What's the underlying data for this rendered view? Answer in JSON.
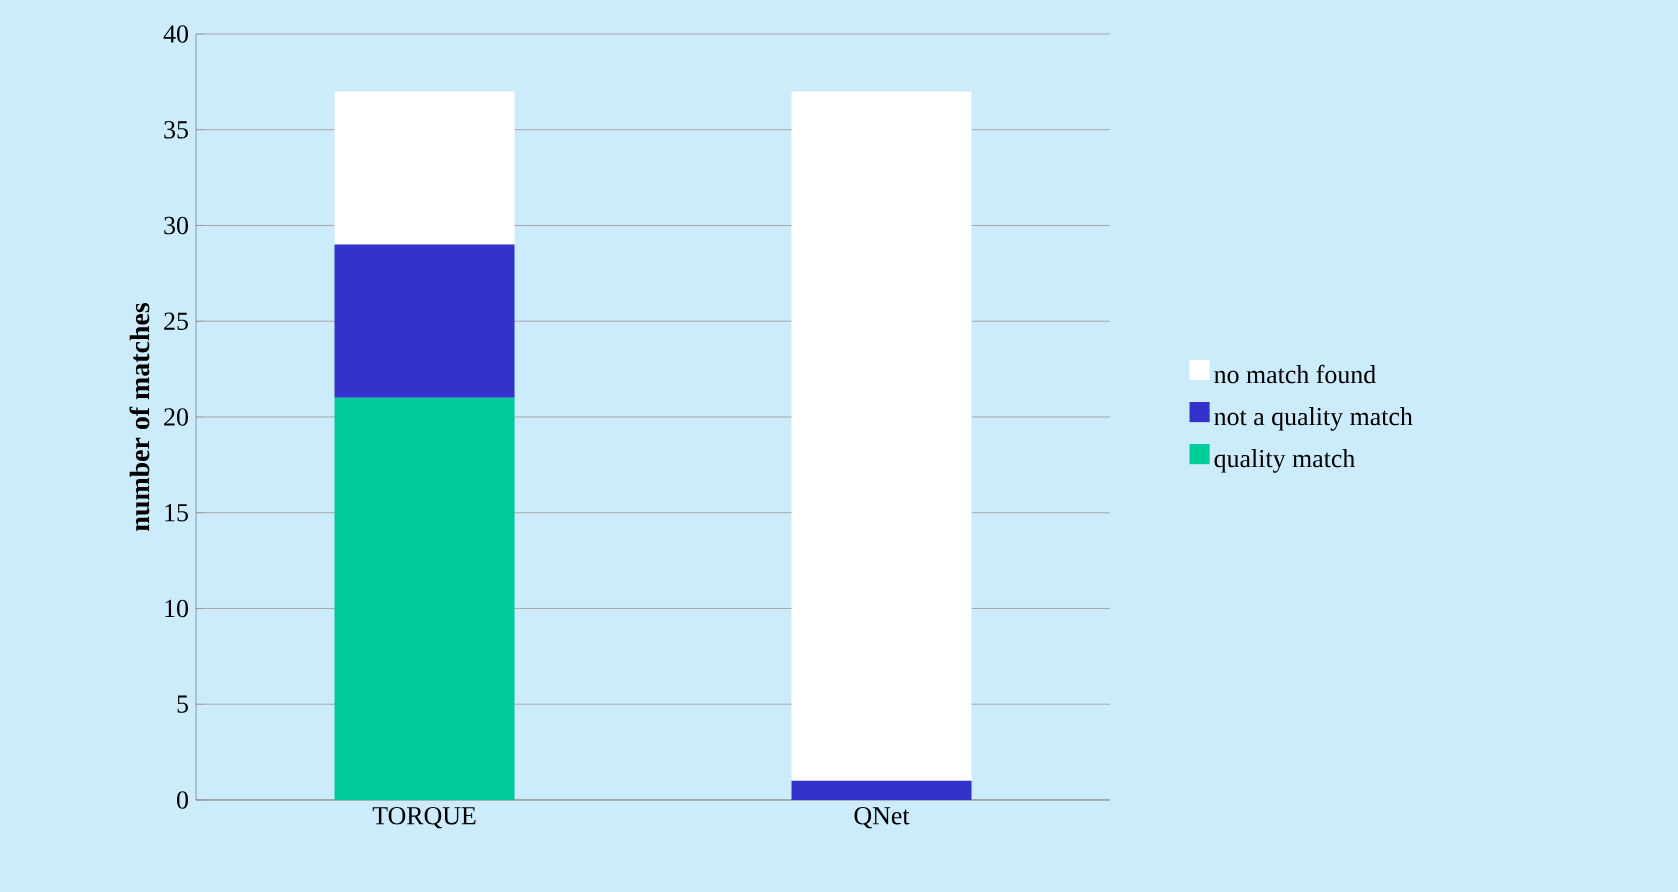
{
  "chart_data": {
    "type": "bar",
    "stacked": true,
    "ylabel": "number of matches",
    "categories": [
      "TORQUE",
      "QNet"
    ],
    "series": [
      {
        "name": "quality match",
        "color": "#00cc99",
        "values": [
          21,
          0
        ]
      },
      {
        "name": "not a quality match",
        "color": "#3333cc",
        "values": [
          8,
          1
        ]
      },
      {
        "name": "no match found",
        "color": "#ffffff",
        "values": [
          8,
          36
        ]
      }
    ],
    "ylim": [
      0,
      40
    ],
    "yticks": [
      0,
      5,
      10,
      15,
      20,
      25,
      30,
      35,
      40
    ],
    "grid": "y",
    "legend": "right"
  }
}
